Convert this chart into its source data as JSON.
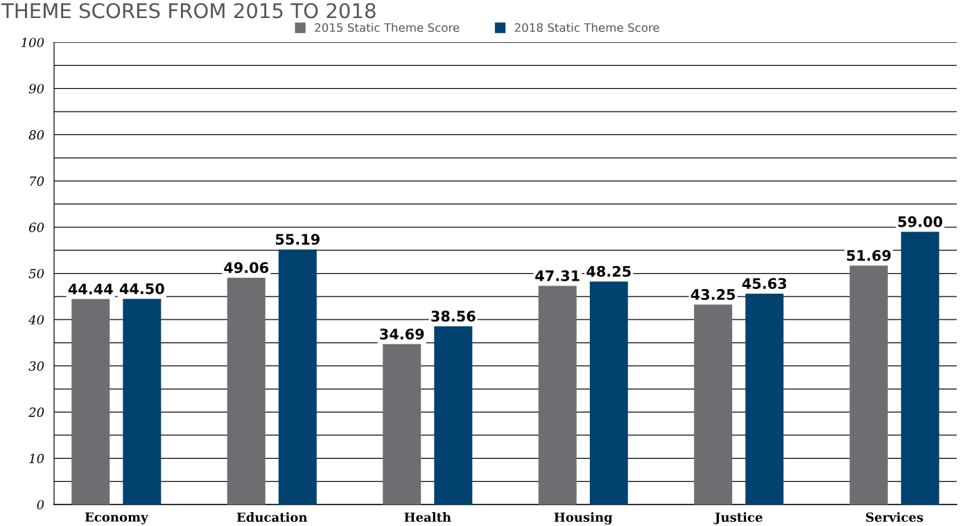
{
  "chart_data": {
    "type": "bar",
    "title": "THEME SCORES FROM 2015 TO 2018",
    "categories": [
      "Economy",
      "Education",
      "Health",
      "Housing",
      "Justice",
      "Services"
    ],
    "series": [
      {
        "name": "2015 Static Theme Score",
        "color": "#6d6e71",
        "values": [
          44.44,
          49.06,
          34.69,
          47.31,
          43.25,
          51.69
        ],
        "value_labels": [
          "44.44",
          "49.06",
          "34.69",
          "47.31",
          "43.25",
          "51.69"
        ]
      },
      {
        "name": "2018 Static Theme Score",
        "color": "#00426f",
        "values": [
          44.5,
          55.19,
          38.56,
          48.25,
          45.63,
          59.0
        ],
        "value_labels": [
          "44.50",
          "55.19",
          "38.56",
          "48.25",
          "45.63",
          "59.00"
        ]
      }
    ],
    "ylim": [
      0,
      100
    ],
    "yticks": [
      0,
      {
        "value": 5,
        "label": null
      },
      10,
      {
        "value": 15,
        "label": null
      },
      20,
      {
        "value": 25,
        "label": null
      },
      30,
      {
        "value": 35,
        "label": null
      },
      40,
      {
        "value": 45,
        "label": null
      },
      50,
      {
        "value": 55,
        "label": null
      },
      60,
      {
        "value": 65,
        "label": null
      },
      70,
      {
        "value": 75,
        "label": null
      },
      80,
      {
        "value": 85,
        "label": null
      },
      90,
      {
        "value": 95,
        "label": null
      },
      100
    ],
    "grid": "y",
    "legend": "top right"
  }
}
